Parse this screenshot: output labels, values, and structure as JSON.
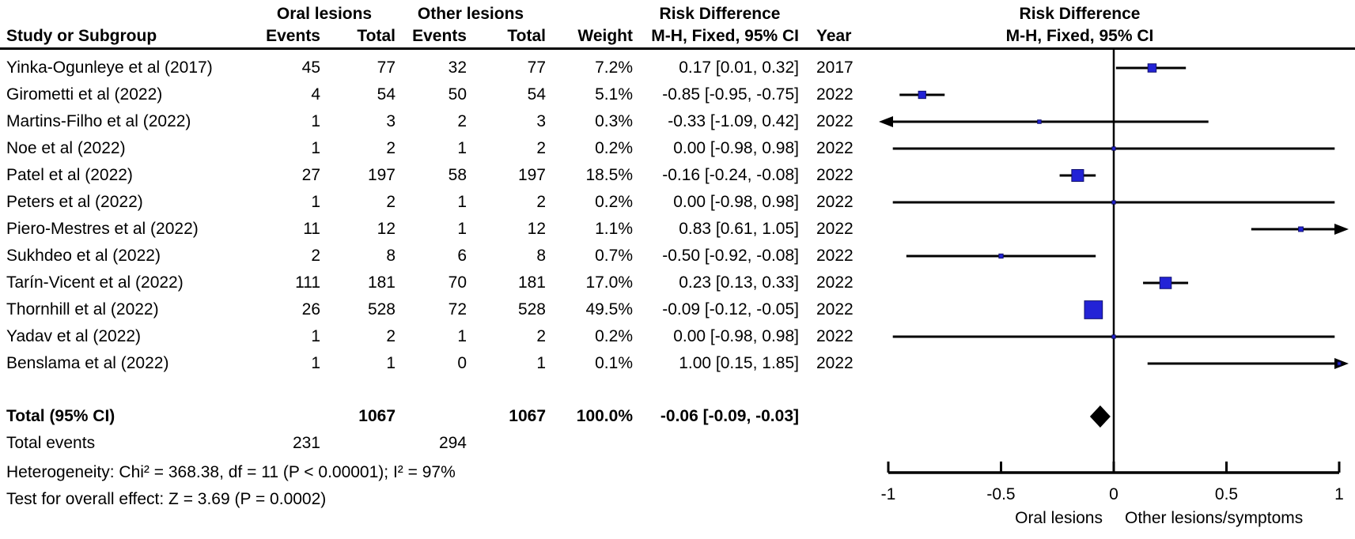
{
  "header": {
    "study": "Study or Subgroup",
    "group1": "Oral lesions",
    "group2": "Other lesions",
    "events": "Events",
    "total": "Total",
    "weight": "Weight",
    "effect": "Risk Difference",
    "effect_sub": "M-H, Fixed, 95% CI",
    "year": "Year",
    "plot_effect": "Risk Difference",
    "plot_effect_sub": "M-H, Fixed, 95% CI"
  },
  "colors": {
    "marker_fill": "#2323D6",
    "marker_stroke": "#10106E",
    "line_color": "#000000",
    "diamond_fill": "#000000"
  },
  "chart_data": {
    "type": "forest",
    "effect_measure": "Risk Difference, M-H, Fixed, 95% CI",
    "axis": {
      "min": -1,
      "max": 1,
      "ticks": [
        -1,
        -0.5,
        0,
        0.5,
        1
      ],
      "tick_labels": [
        "-1",
        "-0.5",
        "0",
        "0.5",
        "1"
      ],
      "favors_left": "Oral lesions",
      "favors_right": "Other lesions/symptoms"
    },
    "studies": [
      {
        "name": "Yinka-Ogunleye et al (2017)",
        "e1": 45,
        "t1": 77,
        "e2": 32,
        "t2": 77,
        "weight": "7.2%",
        "weight_val": 7.2,
        "rd": 0.17,
        "lo": 0.01,
        "hi": 0.32,
        "ci_text": "0.17 [0.01, 0.32]",
        "year": "2017"
      },
      {
        "name": "Girometti et al (2022)",
        "e1": 4,
        "t1": 54,
        "e2": 50,
        "t2": 54,
        "weight": "5.1%",
        "weight_val": 5.1,
        "rd": -0.85,
        "lo": -0.95,
        "hi": -0.75,
        "ci_text": "-0.85 [-0.95, -0.75]",
        "year": "2022"
      },
      {
        "name": "Martins-Filho et al (2022)",
        "e1": 1,
        "t1": 3,
        "e2": 2,
        "t2": 3,
        "weight": "0.3%",
        "weight_val": 0.3,
        "rd": -0.33,
        "lo": -1.09,
        "hi": 0.42,
        "ci_text": "-0.33 [-1.09, 0.42]",
        "year": "2022"
      },
      {
        "name": "Noe et al (2022)",
        "e1": 1,
        "t1": 2,
        "e2": 1,
        "t2": 2,
        "weight": "0.2%",
        "weight_val": 0.2,
        "rd": 0.0,
        "lo": -0.98,
        "hi": 0.98,
        "ci_text": "0.00 [-0.98, 0.98]",
        "year": "2022"
      },
      {
        "name": "Patel et al (2022)",
        "e1": 27,
        "t1": 197,
        "e2": 58,
        "t2": 197,
        "weight": "18.5%",
        "weight_val": 18.5,
        "rd": -0.16,
        "lo": -0.24,
        "hi": -0.08,
        "ci_text": "-0.16 [-0.24, -0.08]",
        "year": "2022"
      },
      {
        "name": "Peters et al (2022)",
        "e1": 1,
        "t1": 2,
        "e2": 1,
        "t2": 2,
        "weight": "0.2%",
        "weight_val": 0.2,
        "rd": 0.0,
        "lo": -0.98,
        "hi": 0.98,
        "ci_text": "0.00 [-0.98, 0.98]",
        "year": "2022"
      },
      {
        "name": "Piero-Mestres et al (2022)",
        "e1": 11,
        "t1": 12,
        "e2": 1,
        "t2": 12,
        "weight": "1.1%",
        "weight_val": 1.1,
        "rd": 0.83,
        "lo": 0.61,
        "hi": 1.05,
        "ci_text": "0.83 [0.61, 1.05]",
        "year": "2022"
      },
      {
        "name": "Sukhdeo et al (2022)",
        "e1": 2,
        "t1": 8,
        "e2": 6,
        "t2": 8,
        "weight": "0.7%",
        "weight_val": 0.7,
        "rd": -0.5,
        "lo": -0.92,
        "hi": -0.08,
        "ci_text": "-0.50 [-0.92, -0.08]",
        "year": "2022"
      },
      {
        "name": "Tarín-Vicent et al (2022)",
        "e1": 111,
        "t1": 181,
        "e2": 70,
        "t2": 181,
        "weight": "17.0%",
        "weight_val": 17.0,
        "rd": 0.23,
        "lo": 0.13,
        "hi": 0.33,
        "ci_text": "0.23 [0.13, 0.33]",
        "year": "2022"
      },
      {
        "name": "Thornhill et al (2022)",
        "e1": 26,
        "t1": 528,
        "e2": 72,
        "t2": 528,
        "weight": "49.5%",
        "weight_val": 49.5,
        "rd": -0.09,
        "lo": -0.12,
        "hi": -0.05,
        "ci_text": "-0.09 [-0.12, -0.05]",
        "year": "2022"
      },
      {
        "name": "Yadav et al (2022)",
        "e1": 1,
        "t1": 2,
        "e2": 1,
        "t2": 2,
        "weight": "0.2%",
        "weight_val": 0.2,
        "rd": 0.0,
        "lo": -0.98,
        "hi": 0.98,
        "ci_text": "0.00 [-0.98, 0.98]",
        "year": "2022"
      },
      {
        "name": "Benslama et al (2022)",
        "e1": 1,
        "t1": 1,
        "e2": 0,
        "t2": 1,
        "weight": "0.1%",
        "weight_val": 0.1,
        "rd": 1.0,
        "lo": 0.15,
        "hi": 1.85,
        "ci_text": "1.00 [0.15, 1.85]",
        "year": "2022"
      }
    ],
    "total": {
      "label": "Total (95% CI)",
      "t1": 1067,
      "t2": 1067,
      "weight": "100.0%",
      "rd": -0.06,
      "lo": -0.09,
      "hi": -0.03,
      "ci_text": "-0.06 [-0.09, -0.03]"
    },
    "total_events": {
      "label": "Total events",
      "e1": 231,
      "e2": 294
    },
    "heterogeneity": "Heterogeneity: Chi² = 368.38, df = 11 (P < 0.00001); I² = 97%",
    "overall_effect": "Test for overall effect: Z = 3.69 (P = 0.0002)"
  }
}
